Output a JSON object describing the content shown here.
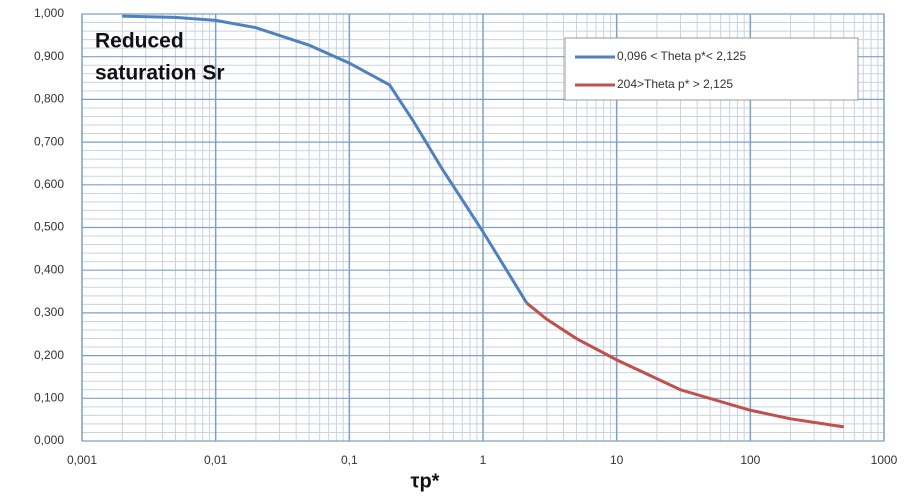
{
  "chart_data": {
    "type": "line",
    "annotation": [
      "Reduced",
      "saturation Sr"
    ],
    "x_label": "τp*",
    "series": [
      {
        "name": "0,096 < Theta p*< 2,125",
        "color": "#4f81bd",
        "x": [
          0.002,
          0.005,
          0.01,
          0.02,
          0.05,
          0.1,
          0.2,
          0.3,
          0.5,
          1,
          2.125
        ],
        "values": [
          0.995,
          0.992,
          0.985,
          0.968,
          0.927,
          0.885,
          0.834,
          0.75,
          0.635,
          0.49,
          0.323
        ]
      },
      {
        "name": "204>Theta p* > 2,125",
        "color": "#c0504d",
        "x": [
          2.125,
          3,
          5,
          10,
          30,
          100,
          200,
          500
        ],
        "values": [
          0.323,
          0.285,
          0.24,
          0.19,
          0.12,
          0.072,
          0.052,
          0.033
        ]
      }
    ],
    "xlog": true,
    "xlim": [
      0.001,
      1000
    ],
    "xticks": [
      {
        "value": 0.001,
        "label": "0,001"
      },
      {
        "value": 0.01,
        "label": "0,01"
      },
      {
        "value": 0.1,
        "label": "0,1"
      },
      1,
      10,
      100,
      1000
    ],
    "ylim": [
      0,
      1
    ],
    "yticks": [
      {
        "value": 0,
        "label": "0,000"
      },
      {
        "value": 0.1,
        "label": "0,100"
      },
      {
        "value": 0.2,
        "label": "0,200"
      },
      {
        "value": 0.3,
        "label": "0,300"
      },
      {
        "value": 0.4,
        "label": "0,400"
      },
      {
        "value": 0.5,
        "label": "0,500"
      },
      {
        "value": 0.6,
        "label": "0,600"
      },
      {
        "value": 0.7,
        "label": "0,700"
      },
      {
        "value": 0.8,
        "label": "0,800"
      },
      {
        "value": 0.9,
        "label": "0,900"
      },
      {
        "value": 1,
        "label": "1,000"
      }
    ],
    "grid": true,
    "legend": "top-right"
  }
}
